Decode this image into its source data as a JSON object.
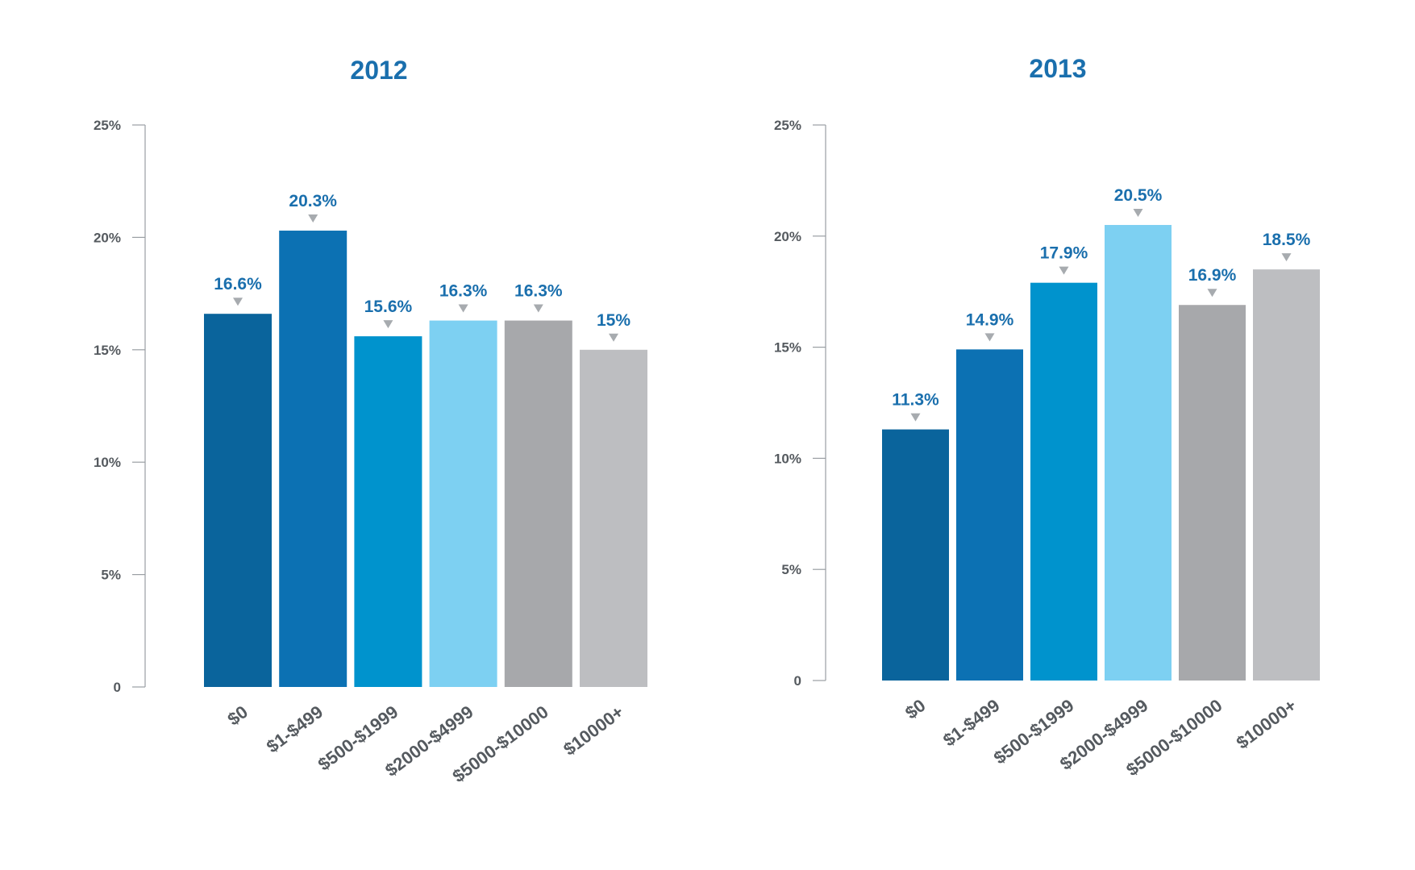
{
  "chart_data": [
    {
      "type": "bar",
      "title": "2012",
      "categories": [
        "$0",
        "$1-$499",
        "$500-$1999",
        "$2000-$4999",
        "$5000-$10000",
        "$10000+"
      ],
      "values": [
        16.6,
        20.3,
        15.6,
        16.3,
        16.3,
        15
      ],
      "value_labels": [
        "16.6%",
        "20.3%",
        "15.6%",
        "16.3%",
        "16.3%",
        "15%"
      ],
      "yticks": [
        "0",
        "5%",
        "10%",
        "15%",
        "20%",
        "25%"
      ],
      "ylim": [
        0,
        25
      ],
      "colors": [
        "#0a649c",
        "#0c71b3",
        "#0093cd",
        "#7dd0f2",
        "#a7a8ab",
        "#bdbec1"
      ],
      "grid": false,
      "legend": "none"
    },
    {
      "type": "bar",
      "title": "2013",
      "categories": [
        "$0",
        "$1-$499",
        "$500-$1999",
        "$2000-$4999",
        "$5000-$10000",
        "$10000+"
      ],
      "values": [
        11.3,
        14.9,
        17.9,
        20.5,
        16.9,
        18.5
      ],
      "value_labels": [
        "11.3%",
        "14.9%",
        "17.9%",
        "20.5%",
        "16.9%",
        "18.5%"
      ],
      "yticks": [
        "0",
        "5%",
        "10%",
        "15%",
        "20%",
        "25%"
      ],
      "ylim": [
        0,
        25
      ],
      "colors": [
        "#0a649c",
        "#0c71b3",
        "#0093cd",
        "#7dd0f2",
        "#a7a8ab",
        "#bdbec1"
      ],
      "grid": false,
      "legend": "none"
    }
  ]
}
